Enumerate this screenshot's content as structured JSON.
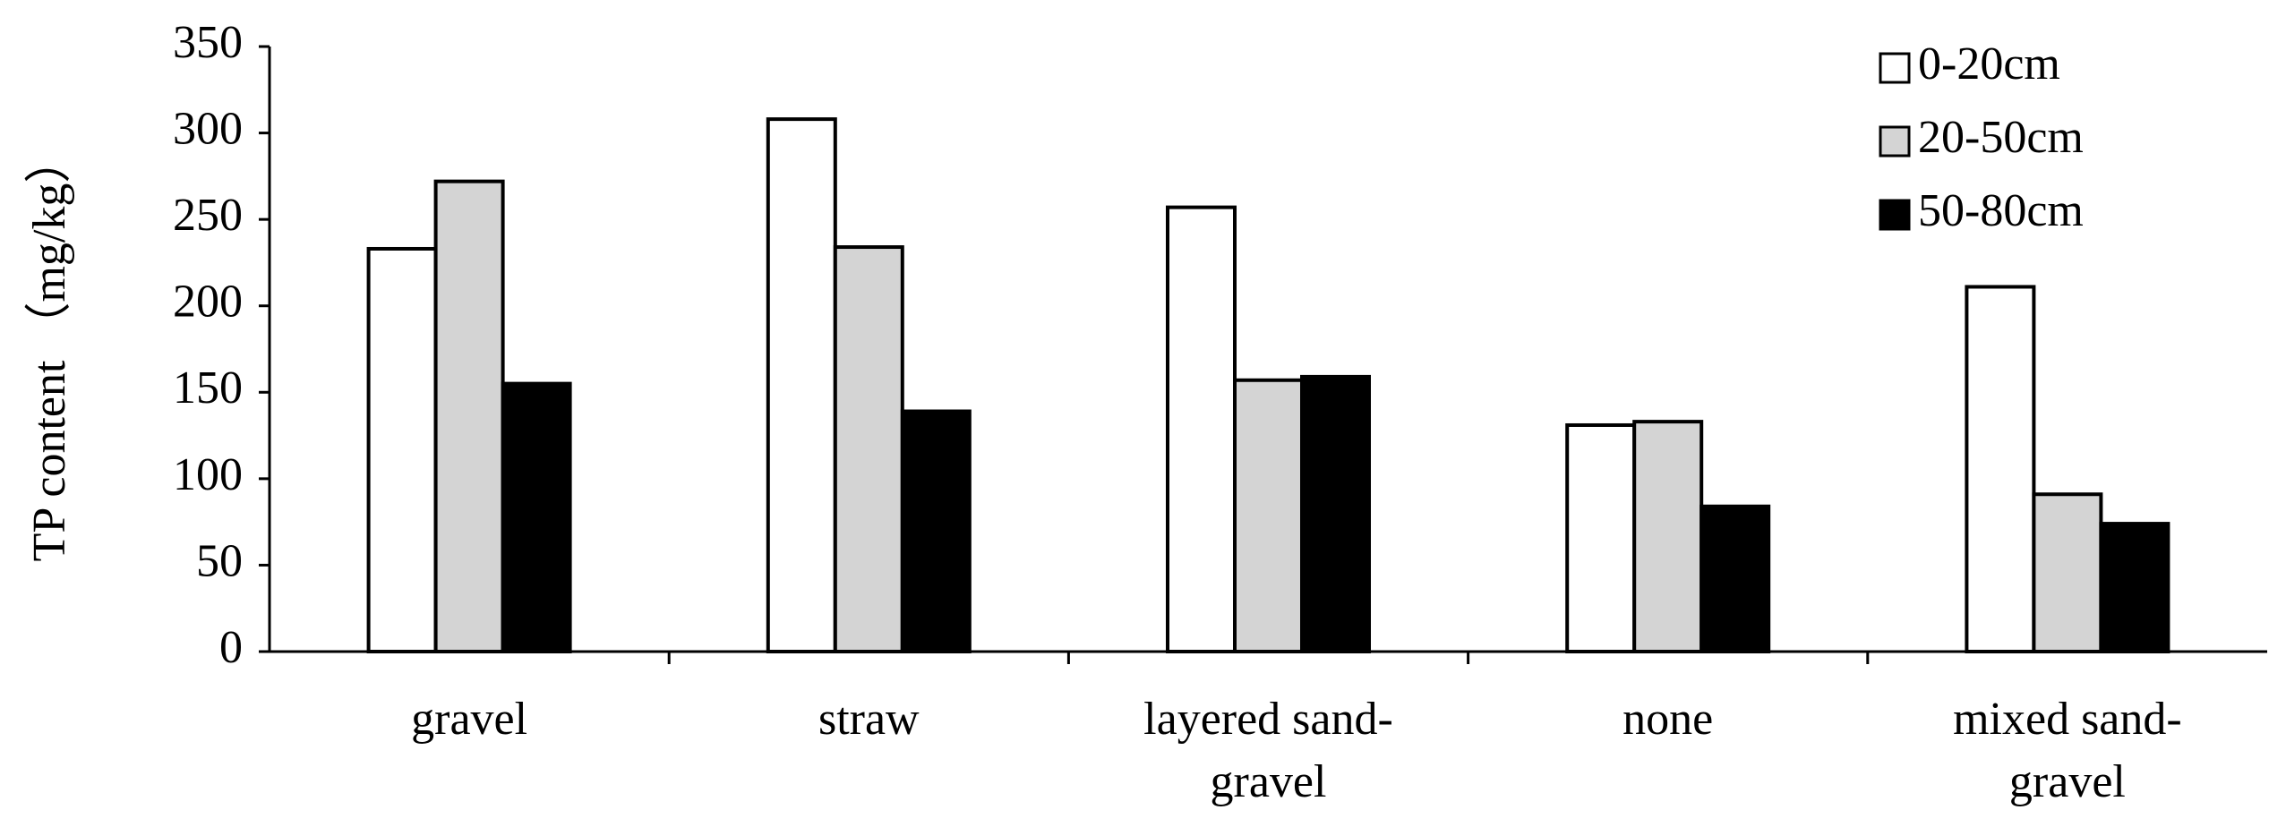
{
  "chart_data": {
    "type": "bar",
    "y_label": "TP content （mg/kg）",
    "categories": [
      "gravel",
      "straw",
      "layered sand-gravel",
      "none",
      "mixed sand-gravel"
    ],
    "series": [
      {
        "name": "0-20cm",
        "color": "#ffffff",
        "values": [
          233,
          308,
          257,
          131,
          211
        ]
      },
      {
        "name": "20-50cm",
        "color": "#d4d4d4",
        "values": [
          272,
          234,
          157,
          133,
          91
        ]
      },
      {
        "name": "50-80cm",
        "color": "#000000",
        "values": [
          155,
          139,
          159,
          84,
          74
        ]
      }
    ],
    "ylim": [
      0,
      350
    ],
    "yticks": [
      0,
      50,
      100,
      150,
      200,
      250,
      300,
      350
    ],
    "legend": "upper right",
    "grid": false
  }
}
